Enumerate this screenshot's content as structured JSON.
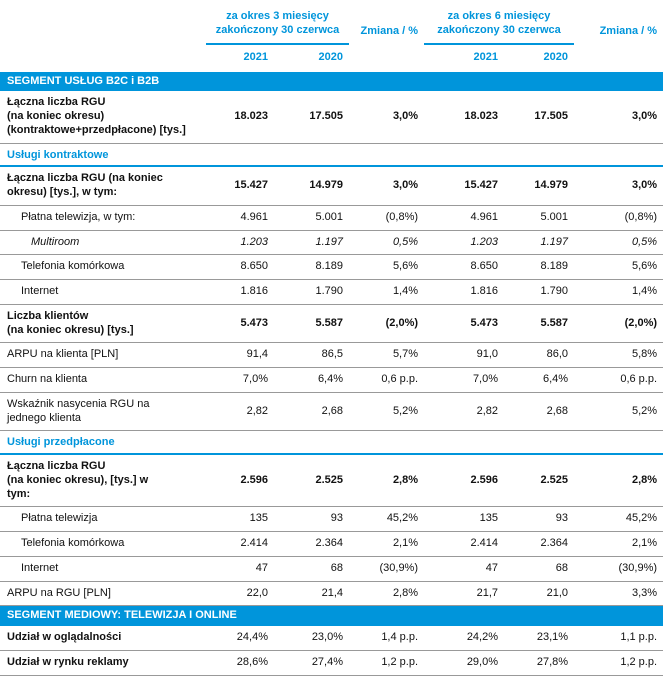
{
  "header": {
    "period3": "za okres 3 miesięcy\nzakończony 30 czerwca",
    "period6": "za okres 6 miesięcy\nzakończony 30 czerwca",
    "change": "Zmiana / %",
    "years": [
      "2021",
      "2020",
      "2021",
      "2020"
    ]
  },
  "colors": {
    "accent_blue": "#0095db",
    "section_bar_bg": "#0095db",
    "section_bar_text": "#ffffff",
    "row_line": "#999999"
  },
  "table": {
    "rows": [
      {
        "type": "section",
        "label": "SEGMENT USŁUG B2C i B2B"
      },
      {
        "type": "data",
        "bold": true,
        "label": "Łączna liczba RGU\n(na koniec okresu)\n(kontraktowe+przedpłacone) [tys.]",
        "values": [
          "18.023",
          "17.505",
          "3,0%",
          "18.023",
          "17.505",
          "3,0%"
        ]
      },
      {
        "type": "subsection",
        "label": "Usługi kontraktowe"
      },
      {
        "type": "data",
        "bold": true,
        "label": "Łączna liczba RGU (na koniec\nokresu) [tys.], w tym:",
        "values": [
          "15.427",
          "14.979",
          "3,0%",
          "15.427",
          "14.979",
          "3,0%"
        ]
      },
      {
        "type": "data",
        "indent": 1,
        "label": "Płatna telewizja, w tym:",
        "values": [
          "4.961",
          "5.001",
          "(0,8%)",
          "4.961",
          "5.001",
          "(0,8%)"
        ]
      },
      {
        "type": "data",
        "indent": 2,
        "italic": true,
        "label": "Multiroom",
        "values": [
          "1.203",
          "1.197",
          "0,5%",
          "1.203",
          "1.197",
          "0,5%"
        ]
      },
      {
        "type": "data",
        "indent": 1,
        "label": "Telefonia komórkowa",
        "values": [
          "8.650",
          "8.189",
          "5,6%",
          "8.650",
          "8.189",
          "5,6%"
        ]
      },
      {
        "type": "data",
        "indent": 1,
        "label": "Internet",
        "values": [
          "1.816",
          "1.790",
          "1,4%",
          "1.816",
          "1.790",
          "1,4%"
        ]
      },
      {
        "type": "data",
        "bold": true,
        "label": "Liczba klientów\n(na koniec okresu) [tys.]",
        "values": [
          "5.473",
          "5.587",
          "(2,0%)",
          "5.473",
          "5.587",
          "(2,0%)"
        ]
      },
      {
        "type": "data",
        "label": "ARPU na klienta [PLN]",
        "values": [
          "91,4",
          "86,5",
          "5,7%",
          "91,0",
          "86,0",
          "5,8%"
        ]
      },
      {
        "type": "data",
        "label": "Churn na klienta",
        "values": [
          "7,0%",
          "6,4%",
          "0,6 p.p.",
          "7,0%",
          "6,4%",
          "0,6 p.p."
        ]
      },
      {
        "type": "data",
        "label": "Wskaźnik nasycenia RGU na\njednego klienta",
        "values": [
          "2,82",
          "2,68",
          "5,2%",
          "2,82",
          "2,68",
          "5,2%"
        ]
      },
      {
        "type": "subsection",
        "label": "Usługi przedpłacone"
      },
      {
        "type": "data",
        "bold": true,
        "label": "Łączna liczba RGU\n(na koniec okresu), [tys.] w\ntym:",
        "values": [
          "2.596",
          "2.525",
          "2,8%",
          "2.596",
          "2.525",
          "2,8%"
        ]
      },
      {
        "type": "data",
        "indent": 1,
        "label": "Płatna telewizja",
        "values": [
          "135",
          "93",
          "45,2%",
          "135",
          "93",
          "45,2%"
        ]
      },
      {
        "type": "data",
        "indent": 1,
        "label": "Telefonia komórkowa",
        "values": [
          "2.414",
          "2.364",
          "2,1%",
          "2.414",
          "2.364",
          "2,1%"
        ]
      },
      {
        "type": "data",
        "indent": 1,
        "label": "Internet",
        "values": [
          "47",
          "68",
          "(30,9%)",
          "47",
          "68",
          "(30,9%)"
        ]
      },
      {
        "type": "data",
        "label": "ARPU na RGU [PLN]",
        "values": [
          "22,0",
          "21,4",
          "2,8%",
          "21,7",
          "21,0",
          "3,3%"
        ]
      },
      {
        "type": "section",
        "label": "SEGMENT MEDIOWY: TELEWIZJA I ONLINE"
      },
      {
        "type": "data",
        "labelBold": true,
        "label": "Udział w oglądalności",
        "values": [
          "24,4%",
          "23,0%",
          "1,4 p.p.",
          "24,2%",
          "23,1%",
          "1,1 p.p."
        ]
      },
      {
        "type": "data",
        "labelBold": true,
        "label": "Udział w rynku reklamy",
        "values": [
          "28,6%",
          "27,4%",
          "1,2 p.p.",
          "29,0%",
          "27,8%",
          "1,2 p.p."
        ]
      }
    ]
  }
}
